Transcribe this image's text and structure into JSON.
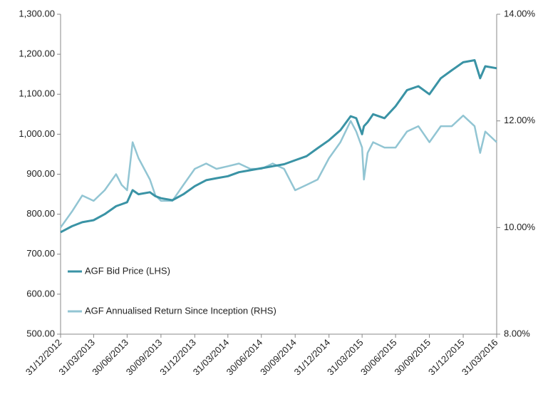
{
  "chart_data": {
    "type": "line",
    "x": [
      "31/12/2012",
      "31/01/2013",
      "28/02/2013",
      "31/03/2013",
      "30/04/2013",
      "31/05/2013",
      "15/06/2013",
      "30/06/2013",
      "15/07/2013",
      "31/07/2013",
      "31/08/2013",
      "15/09/2013",
      "30/09/2013",
      "31/10/2013",
      "30/11/2013",
      "31/12/2013",
      "31/01/2014",
      "28/02/2014",
      "31/03/2014",
      "30/04/2014",
      "31/05/2014",
      "30/06/2014",
      "31/07/2014",
      "31/08/2014",
      "30/09/2014",
      "31/10/2014",
      "30/11/2014",
      "31/12/2014",
      "31/01/2015",
      "28/02/2015",
      "15/03/2015",
      "31/03/2015",
      "05/04/2015",
      "15/04/2015",
      "30/04/2015",
      "31/05/2015",
      "30/06/2015",
      "31/07/2015",
      "31/08/2015",
      "30/09/2015",
      "31/10/2015",
      "30/11/2015",
      "31/12/2015",
      "31/01/2016",
      "15/02/2016",
      "29/02/2016",
      "31/03/2016"
    ],
    "series": [
      {
        "name": "AGF Bid Price (LHS)",
        "color": "#3a93a5",
        "values": [
          755,
          770,
          780,
          785,
          800,
          820,
          825,
          830,
          860,
          850,
          855,
          845,
          840,
          835,
          850,
          870,
          885,
          890,
          895,
          905,
          910,
          915,
          920,
          925,
          935,
          945,
          965,
          985,
          1010,
          1045,
          1040,
          1000,
          1020,
          1030,
          1050,
          1040,
          1070,
          1110,
          1120,
          1100,
          1140,
          1160,
          1180,
          1185,
          1140,
          1170,
          1165
        ]
      },
      {
        "name": "AGF Annualised Return Since Inception (RHS)",
        "color": "#92c5d3",
        "axis": "y2",
        "values": [
          10.0,
          10.3,
          10.6,
          10.5,
          10.7,
          11.0,
          10.8,
          10.7,
          11.6,
          11.3,
          10.9,
          10.6,
          10.5,
          10.5,
          10.8,
          11.1,
          11.2,
          11.1,
          11.15,
          11.2,
          11.1,
          11.1,
          11.2,
          11.1,
          10.7,
          10.8,
          10.9,
          11.3,
          11.6,
          12.0,
          11.8,
          11.5,
          10.9,
          11.4,
          11.6,
          11.5,
          11.5,
          11.8,
          11.9,
          11.6,
          11.9,
          11.9,
          12.1,
          11.9,
          11.4,
          11.8,
          11.6
        ]
      }
    ],
    "xlim": [
      "31/12/2012",
      "31/03/2016"
    ],
    "xticks": [
      "31/12/2012",
      "31/03/2013",
      "30/06/2013",
      "30/09/2013",
      "31/12/2013",
      "31/03/2014",
      "30/06/2014",
      "30/09/2014",
      "31/12/2014",
      "31/03/2015",
      "30/06/2015",
      "30/09/2015",
      "31/12/2015",
      "31/03/2016"
    ],
    "ylim": [
      500,
      1300
    ],
    "yticks": [
      {
        "value": 500,
        "label": "500.00"
      },
      {
        "value": 600,
        "label": "600.00"
      },
      {
        "value": 700,
        "label": "700.00"
      },
      {
        "value": 800,
        "label": "800.00"
      },
      {
        "value": 900,
        "label": "900.00"
      },
      {
        "value": 1000,
        "label": "1,000.00"
      },
      {
        "value": 1100,
        "label": "1,100.00"
      },
      {
        "value": 1200,
        "label": "1,200.00"
      },
      {
        "value": 1300,
        "label": "1,300.00"
      }
    ],
    "y2lim": [
      8,
      14
    ],
    "y2ticks": [
      {
        "value": 8,
        "label": "8.00%"
      },
      {
        "value": 10,
        "label": "10.00%"
      },
      {
        "value": 12,
        "label": "12.00%"
      },
      {
        "value": 14,
        "label": "14.00%"
      }
    ],
    "legend": "lower left"
  }
}
